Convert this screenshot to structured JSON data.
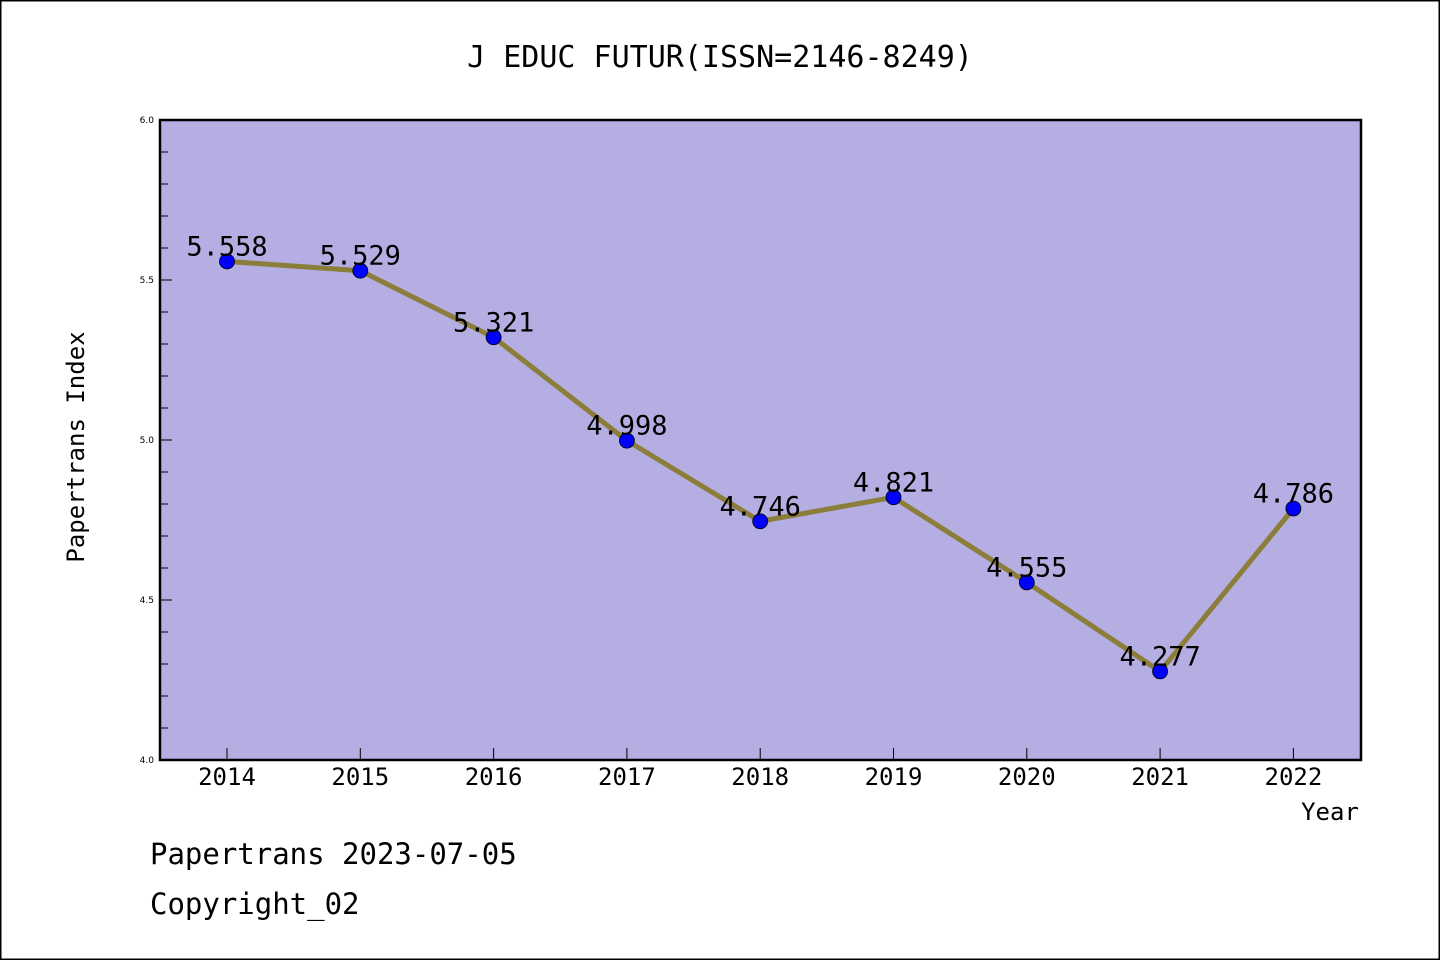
{
  "chart_data": {
    "type": "line",
    "title": "J EDUC FUTUR(ISSN=2146-8249)",
    "xlabel": "Year",
    "ylabel": "Papertrans Index",
    "x": [
      "2014",
      "2015",
      "2016",
      "2017",
      "2018",
      "2019",
      "2020",
      "2021",
      "2022"
    ],
    "series": [
      {
        "values": [
          5.558,
          5.529,
          5.321,
          4.998,
          4.746,
          4.821,
          4.555,
          4.277,
          4.786
        ],
        "data_labels": [
          "5.558",
          "5.529",
          "5.321",
          "4.998",
          "4.746",
          "4.821",
          "4.555",
          "4.277",
          "4.786"
        ],
        "line_color": "#8b7d3a",
        "marker_color": "#0000ff"
      }
    ],
    "ylim": [
      4.0,
      6.0
    ],
    "yticks": [
      4.0,
      4.5,
      5.0,
      5.5,
      6.0
    ],
    "ytick_labels": [
      "4.0",
      "4.5",
      "5.0",
      "5.5",
      "6.0"
    ],
    "plot_background": "#b5aee2",
    "grid": false,
    "legend": "none"
  },
  "footer": {
    "line1": "Papertrans 2023-07-05",
    "line2": "Copyright_02"
  }
}
